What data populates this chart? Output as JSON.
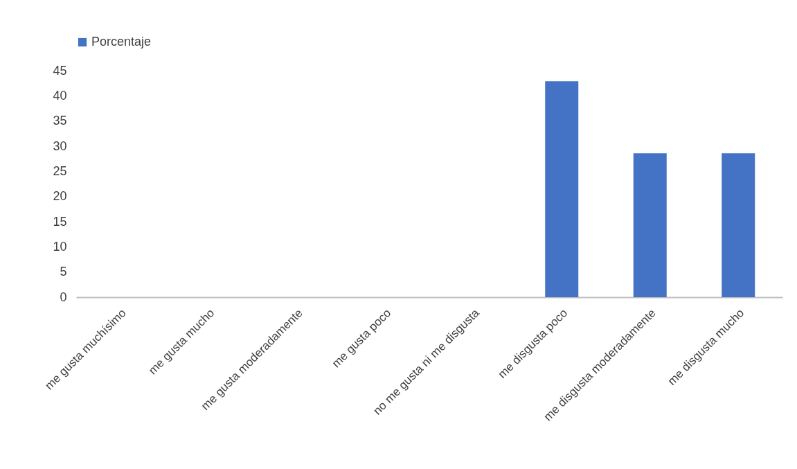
{
  "chart_data": {
    "type": "bar",
    "categories": [
      "me gusta muchísimo",
      "me gusta mucho",
      "me gusta moderadamente",
      "me gusta poco",
      "no me gusta ni me disgusta",
      "me disgusta poco",
      "me disgusta moderadamente",
      "me disgusta mucho"
    ],
    "series": [
      {
        "name": "Porcentaje",
        "color": "#4472c4",
        "values": [
          0,
          0,
          0,
          0,
          0,
          42.9,
          28.6,
          28.6
        ]
      }
    ],
    "ylim": [
      0,
      45
    ],
    "yticks": [
      0,
      5,
      10,
      15,
      20,
      25,
      30,
      35,
      40,
      45
    ],
    "grid": false,
    "legend": "top"
  }
}
